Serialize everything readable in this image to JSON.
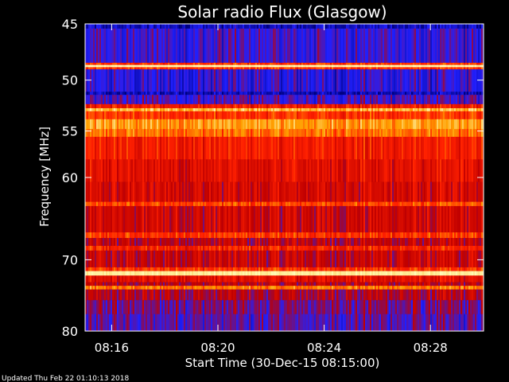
{
  "chart_data": {
    "type": "heatmap",
    "title": "Solar radio Flux (Glasgow)",
    "xlabel": "Start Time (30-Dec-15 08:15:00)",
    "ylabel": "Frequency [MHz]",
    "x_ticks": [
      "08:16",
      "08:20",
      "08:24",
      "08:28"
    ],
    "x_tick_minutes": [
      1,
      5,
      9,
      13
    ],
    "x_range_minutes": [
      0,
      15
    ],
    "y_ticks": [
      45,
      50,
      55,
      60,
      70,
      80
    ],
    "y_range": [
      45,
      80
    ],
    "y_scale": "log",
    "colormap": [
      "#000080",
      "#2020ff",
      "#c00000",
      "#ff2000",
      "#ffa000",
      "#ffffc0"
    ],
    "frequency_bands": [
      {
        "from": 45.0,
        "to": 45.4,
        "level": 0.1
      },
      {
        "from": 45.4,
        "to": 48.4,
        "level": 0.22
      },
      {
        "from": 48.4,
        "to": 48.6,
        "level": 0.62
      },
      {
        "from": 48.6,
        "to": 48.8,
        "level": 0.98
      },
      {
        "from": 48.8,
        "to": 49.0,
        "level": 0.62
      },
      {
        "from": 49.0,
        "to": 51.1,
        "level": 0.2
      },
      {
        "from": 51.1,
        "to": 51.4,
        "level": 0.08
      },
      {
        "from": 51.4,
        "to": 52.3,
        "level": 0.24
      },
      {
        "from": 52.3,
        "to": 52.7,
        "level": 0.55
      },
      {
        "from": 52.7,
        "to": 53.0,
        "level": 0.85
      },
      {
        "from": 53.0,
        "to": 53.8,
        "level": 0.62
      },
      {
        "from": 53.8,
        "to": 54.8,
        "level": 0.8
      },
      {
        "from": 54.8,
        "to": 55.6,
        "level": 0.72
      },
      {
        "from": 55.6,
        "to": 58.0,
        "level": 0.56
      },
      {
        "from": 58.0,
        "to": 60.5,
        "level": 0.5
      },
      {
        "from": 60.5,
        "to": 62.8,
        "level": 0.46
      },
      {
        "from": 62.8,
        "to": 63.3,
        "level": 0.66
      },
      {
        "from": 63.3,
        "to": 66.5,
        "level": 0.44
      },
      {
        "from": 66.5,
        "to": 67.2,
        "level": 0.62
      },
      {
        "from": 67.2,
        "to": 68.2,
        "level": 0.4
      },
      {
        "from": 68.2,
        "to": 68.8,
        "level": 0.58
      },
      {
        "from": 68.8,
        "to": 71.0,
        "level": 0.42
      },
      {
        "from": 71.0,
        "to": 71.5,
        "level": 0.62
      },
      {
        "from": 71.5,
        "to": 72.1,
        "level": 0.96
      },
      {
        "from": 72.1,
        "to": 73.0,
        "level": 0.5
      },
      {
        "from": 73.0,
        "to": 73.5,
        "level": 0.4
      },
      {
        "from": 73.5,
        "to": 74.0,
        "level": 0.74
      },
      {
        "from": 74.0,
        "to": 75.5,
        "level": 0.38
      },
      {
        "from": 75.5,
        "to": 77.5,
        "level": 0.3
      },
      {
        "from": 77.5,
        "to": 80.0,
        "level": 0.26
      }
    ]
  },
  "footer": {
    "updated_text": "Updated Thu Feb 22 01:10:13 2018"
  }
}
